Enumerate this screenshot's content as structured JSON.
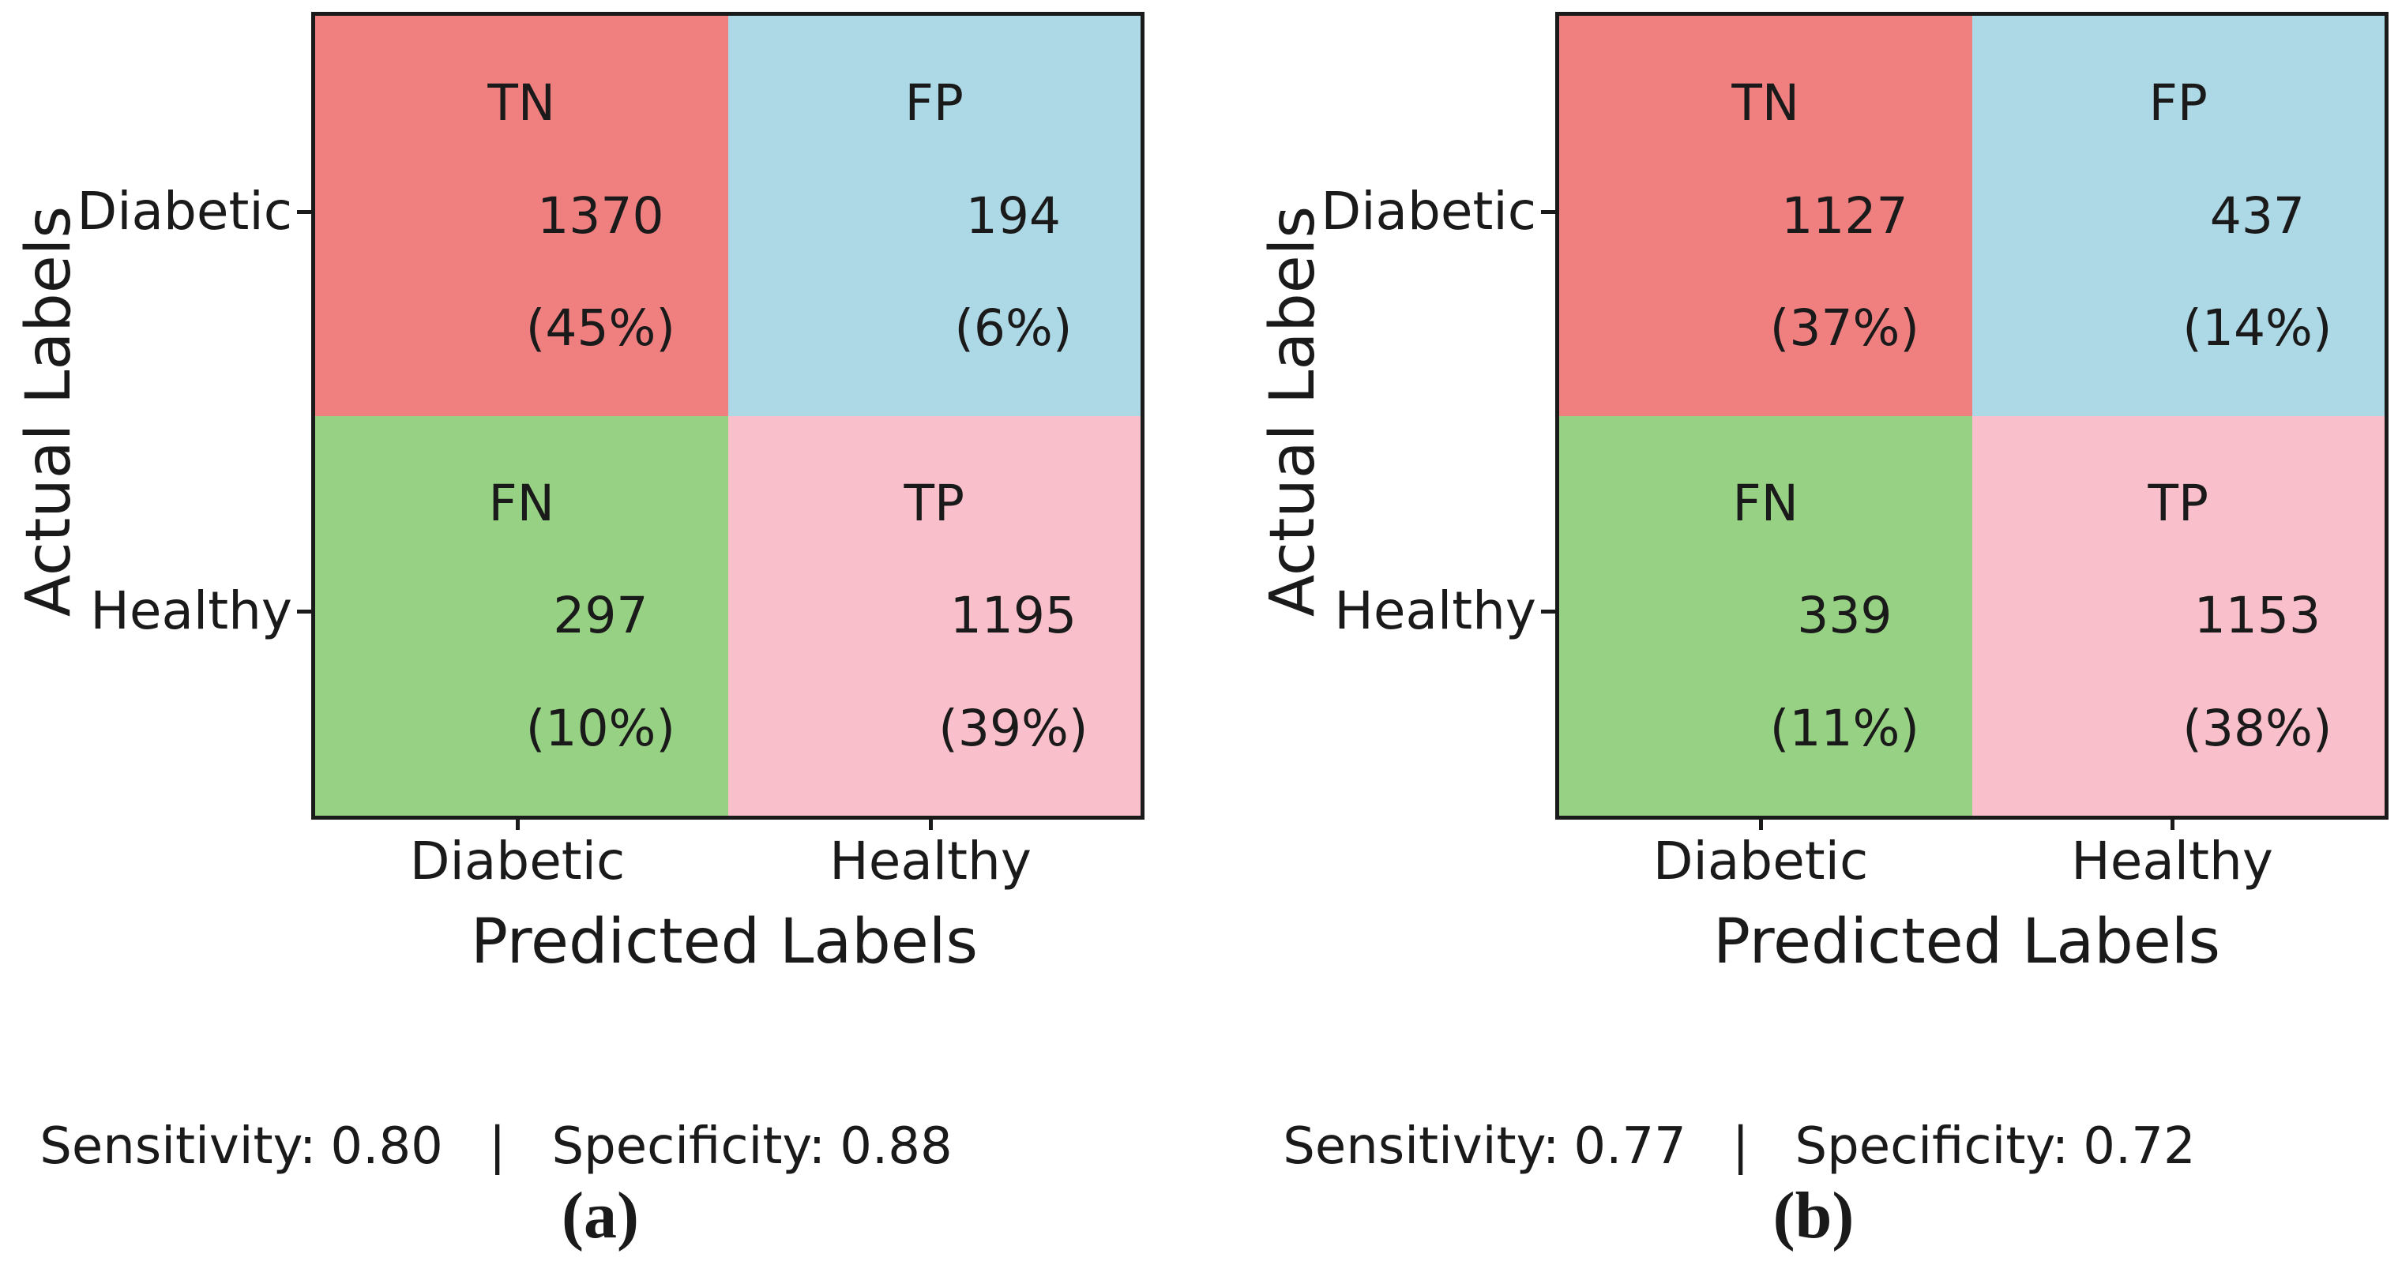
{
  "figure": {
    "background": "#ffffff",
    "text_color": "#1a1a1a"
  },
  "colors": {
    "tn_cell": "#F08080",
    "fp_cell": "#ADD8E6",
    "fn_cell": "#97D183",
    "tp_cell": "#F9C0CB",
    "border": "#1a1a1a"
  },
  "axis": {
    "y_label": "Actual Labels",
    "x_label": "Predicted Labels",
    "y_ticks": [
      "Diabetic",
      "Healthy"
    ],
    "x_ticks": [
      "Diabetic",
      "Healthy"
    ]
  },
  "panels": [
    {
      "caption": "(a)",
      "cells": [
        {
          "abbr": "TN",
          "count": "1370",
          "percent": "(45%)"
        },
        {
          "abbr": "FP",
          "count": "194",
          "percent": "(6%)"
        },
        {
          "abbr": "FN",
          "count": "297",
          "percent": "(10%)"
        },
        {
          "abbr": "TP",
          "count": "1195",
          "percent": "(39%)"
        }
      ],
      "metrics": {
        "sensitivity_label": "Sensitivity:",
        "sensitivity_value": "0.80",
        "divider": "|",
        "specificity_label": "Specificity:",
        "specificity_value": "0.88"
      }
    },
    {
      "caption": "(b)",
      "cells": [
        {
          "abbr": "TN",
          "count": "1127",
          "percent": "(37%)"
        },
        {
          "abbr": "FP",
          "count": "437",
          "percent": "(14%)"
        },
        {
          "abbr": "FN",
          "count": "339",
          "percent": "(11%)"
        },
        {
          "abbr": "TP",
          "count": "1153",
          "percent": "(38%)"
        }
      ],
      "metrics": {
        "sensitivity_label": "Sensitivity:",
        "sensitivity_value": "0.77",
        "divider": "|",
        "specificity_label": "Specificity:",
        "specificity_value": "0.72"
      }
    }
  ],
  "chart_data": [
    {
      "type": "heatmap",
      "title": "(a)",
      "xlabel": "Predicted Labels",
      "ylabel": "Actual Labels",
      "x_categories": [
        "Diabetic",
        "Healthy"
      ],
      "y_categories": [
        "Diabetic",
        "Healthy"
      ],
      "cells": [
        {
          "row": "Diabetic",
          "col": "Diabetic",
          "label": "TN",
          "value": 1370,
          "percent": 45,
          "color": "#F08080"
        },
        {
          "row": "Diabetic",
          "col": "Healthy",
          "label": "FP",
          "value": 194,
          "percent": 6,
          "color": "#ADD8E6"
        },
        {
          "row": "Healthy",
          "col": "Diabetic",
          "label": "FN",
          "value": 297,
          "percent": 10,
          "color": "#97D183"
        },
        {
          "row": "Healthy",
          "col": "Healthy",
          "label": "TP",
          "value": 1195,
          "percent": 39,
          "color": "#F9C0CB"
        }
      ],
      "sensitivity": 0.8,
      "specificity": 0.88,
      "legend": "none",
      "grid": false
    },
    {
      "type": "heatmap",
      "title": "(b)",
      "xlabel": "Predicted Labels",
      "ylabel": "Actual Labels",
      "x_categories": [
        "Diabetic",
        "Healthy"
      ],
      "y_categories": [
        "Diabetic",
        "Healthy"
      ],
      "cells": [
        {
          "row": "Diabetic",
          "col": "Diabetic",
          "label": "TN",
          "value": 1127,
          "percent": 37,
          "color": "#F08080"
        },
        {
          "row": "Diabetic",
          "col": "Healthy",
          "label": "FP",
          "value": 437,
          "percent": 14,
          "color": "#ADD8E6"
        },
        {
          "row": "Healthy",
          "col": "Diabetic",
          "label": "FN",
          "value": 339,
          "percent": 11,
          "color": "#97D183"
        },
        {
          "row": "Healthy",
          "col": "Healthy",
          "label": "TP",
          "value": 1153,
          "percent": 38,
          "color": "#F9C0CB"
        }
      ],
      "sensitivity": 0.77,
      "specificity": 0.72,
      "legend": "none",
      "grid": false
    }
  ]
}
